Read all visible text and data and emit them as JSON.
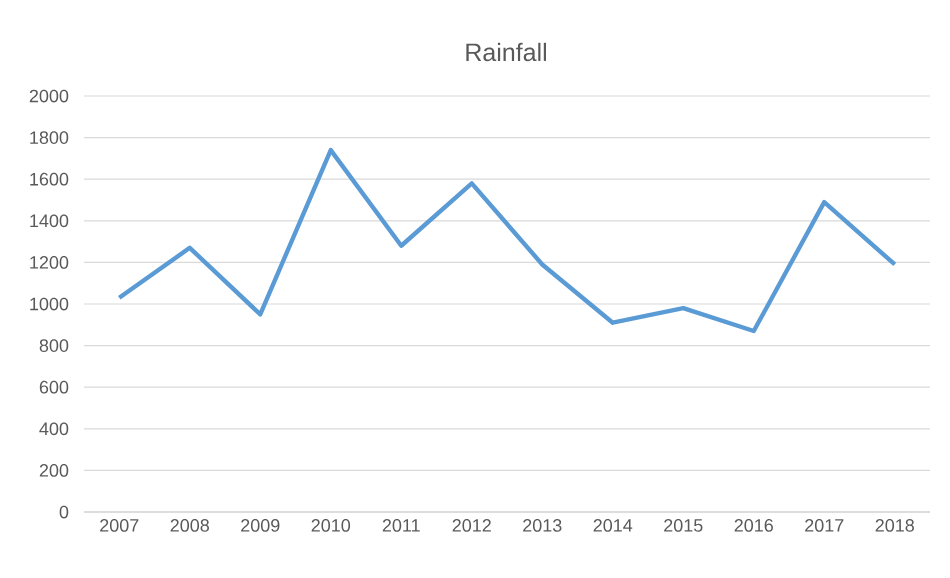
{
  "chart_data": {
    "type": "line",
    "title": "Rainfall",
    "categories": [
      "2007",
      "2008",
      "2009",
      "2010",
      "2011",
      "2012",
      "2013",
      "2014",
      "2015",
      "2016",
      "2017",
      "2018"
    ],
    "series": [
      {
        "color": "#5b9bd5",
        "values": [
          1030,
          1270,
          950,
          1740,
          1280,
          1580,
          1190,
          910,
          980,
          870,
          1490,
          1190
        ]
      }
    ],
    "ylim": [
      0,
      2000
    ],
    "yticks": [
      0,
      200,
      400,
      600,
      800,
      1000,
      1200,
      1400,
      1600,
      1800,
      2000
    ],
    "grid": "y",
    "marker": "none",
    "line_style": "solid"
  }
}
